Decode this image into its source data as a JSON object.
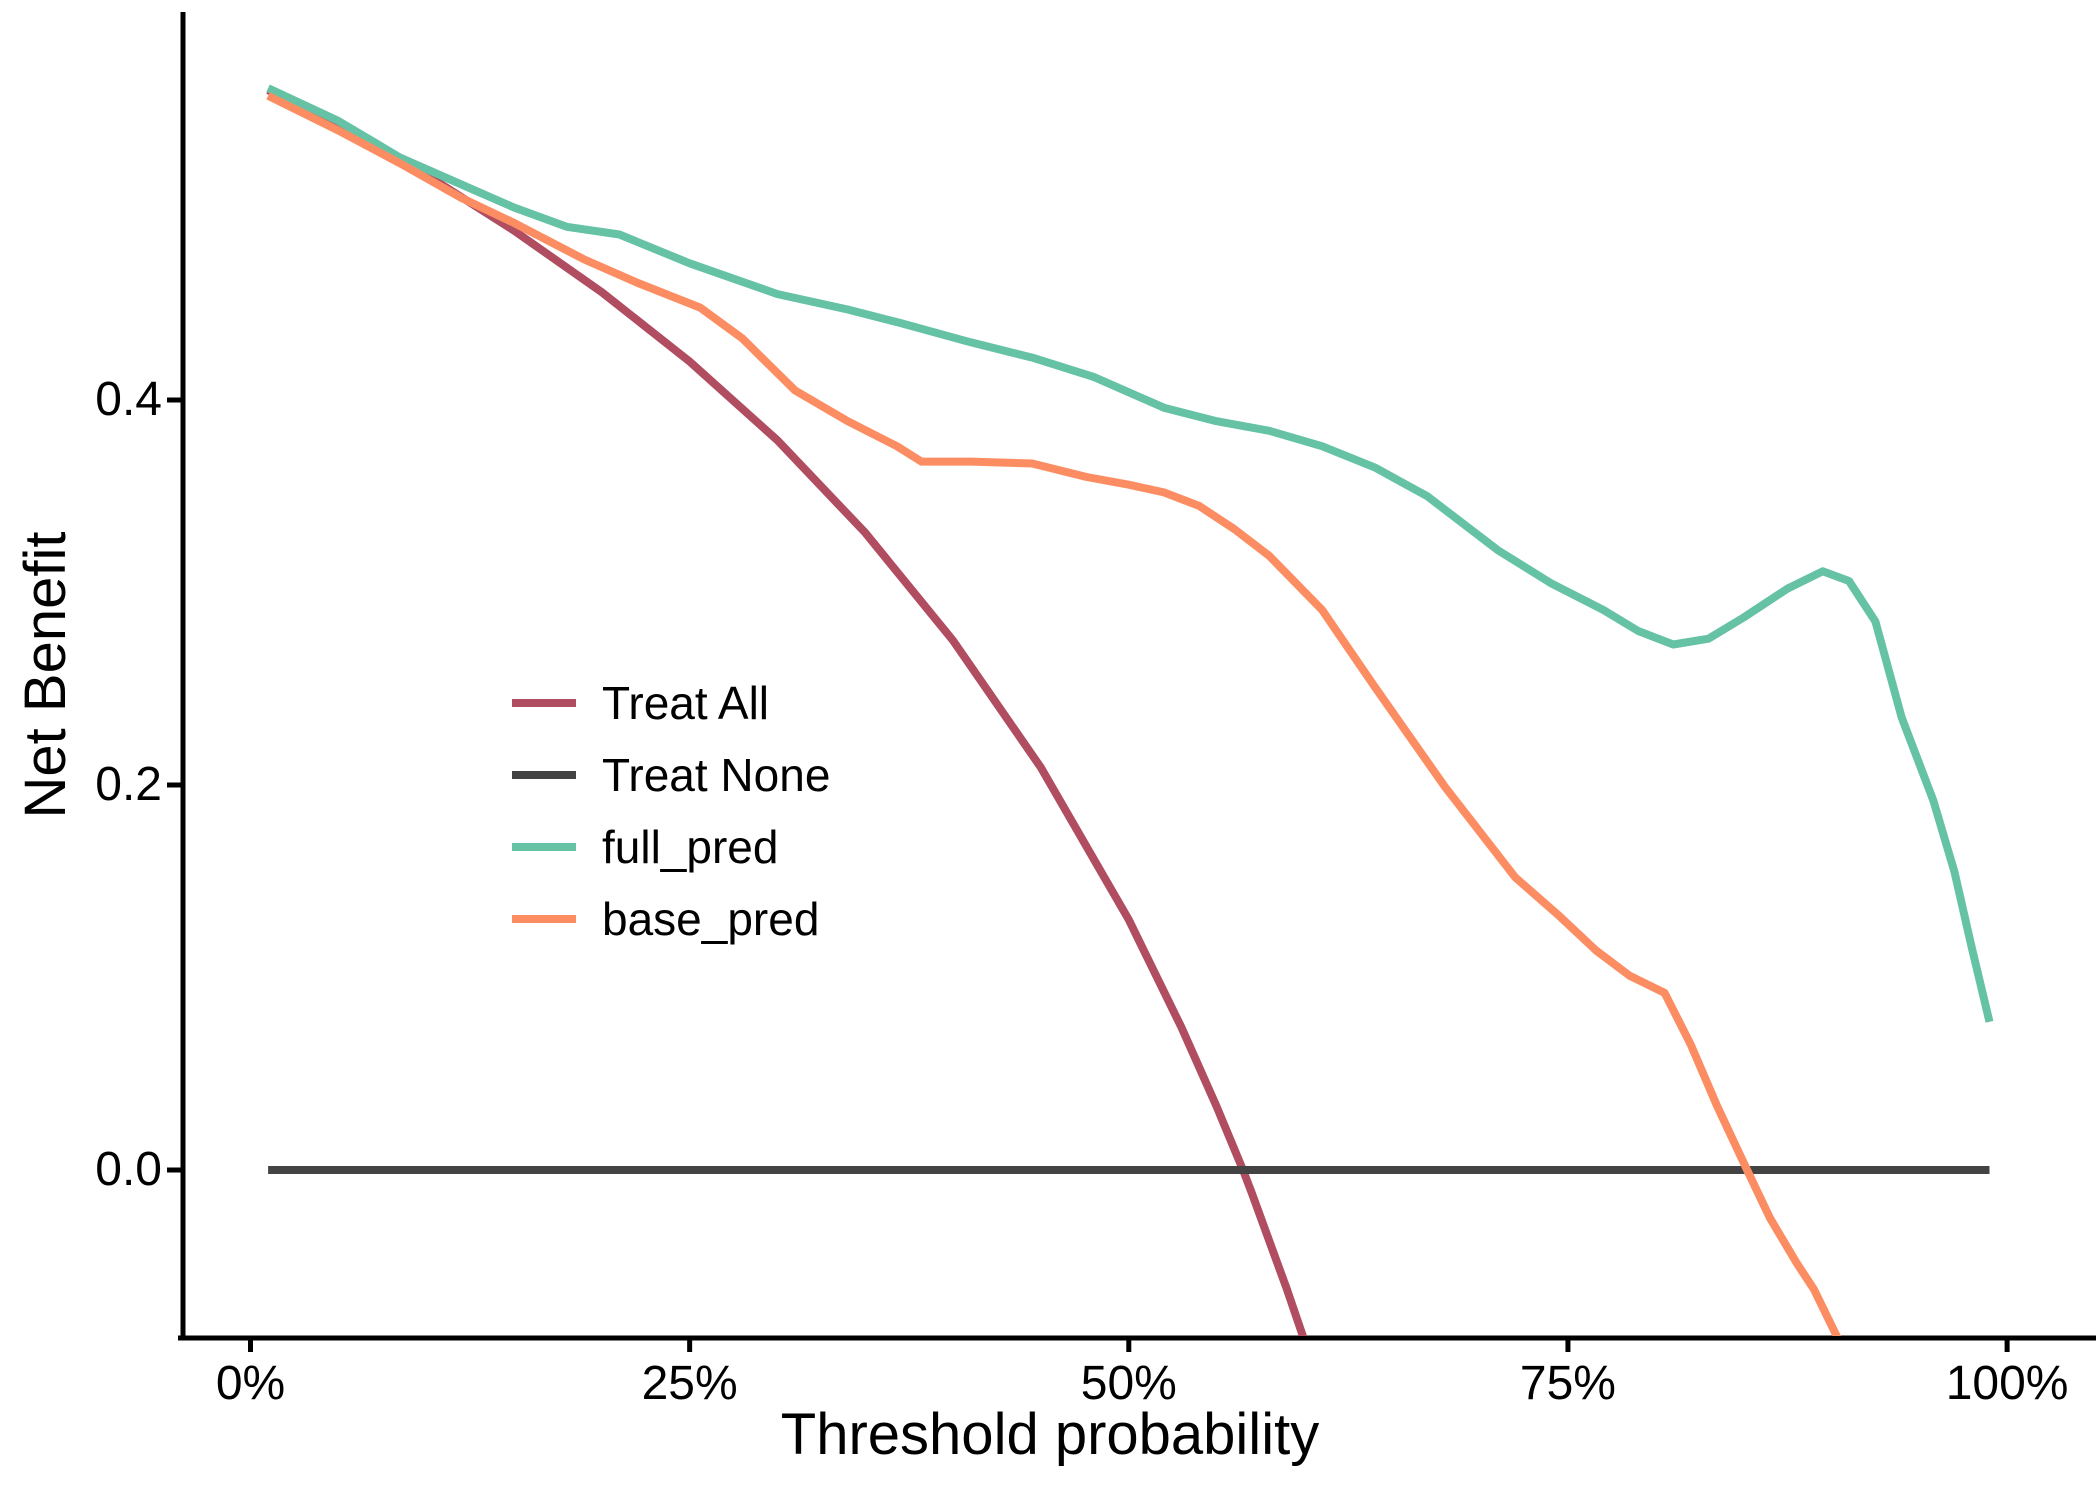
{
  "chart_data": {
    "type": "line",
    "title": "",
    "xlabel": "Threshold probability",
    "ylabel": "Net Benefit",
    "xlim": [
      0,
      100
    ],
    "ylim": [
      -0.09,
      0.6
    ],
    "grid": false,
    "legend_position": "inside-left-middle",
    "x_ticks": [
      {
        "value": 0,
        "label": "0%"
      },
      {
        "value": 25,
        "label": "25%"
      },
      {
        "value": 50,
        "label": "50%"
      },
      {
        "value": 75,
        "label": "75%"
      },
      {
        "value": 100,
        "label": "100%"
      }
    ],
    "y_ticks": [
      {
        "value": 0.0,
        "label": "0.0"
      },
      {
        "value": 0.2,
        "label": "0.2"
      },
      {
        "value": 0.4,
        "label": "0.4"
      }
    ],
    "axis_color": "#000000",
    "series": [
      {
        "name": "Treat All",
        "color": "#B04D61",
        "points": [
          [
            1,
            0.561
          ],
          [
            5,
            0.542
          ],
          [
            10,
            0.517
          ],
          [
            15,
            0.488
          ],
          [
            20,
            0.456
          ],
          [
            25,
            0.42
          ],
          [
            30,
            0.379
          ],
          [
            35,
            0.331
          ],
          [
            40,
            0.275
          ],
          [
            45,
            0.209
          ],
          [
            50,
            0.13
          ],
          [
            53,
            0.074
          ],
          [
            55,
            0.033
          ],
          [
            56.5,
            0.0
          ],
          [
            57,
            -0.012
          ],
          [
            59,
            -0.062
          ],
          [
            60.5,
            -0.102
          ],
          [
            61,
            -0.12
          ]
        ]
      },
      {
        "name": "Treat None",
        "color": "#434343",
        "points": [
          [
            1,
            0.0
          ],
          [
            99,
            0.0
          ]
        ]
      },
      {
        "name": "full_pred",
        "color": "#66C2A5",
        "points": [
          [
            1,
            0.562
          ],
          [
            5,
            0.545
          ],
          [
            8.5,
            0.526
          ],
          [
            12,
            0.512
          ],
          [
            15,
            0.5
          ],
          [
            18,
            0.49
          ],
          [
            21,
            0.486
          ],
          [
            25,
            0.471
          ],
          [
            30,
            0.455
          ],
          [
            34,
            0.447
          ],
          [
            37,
            0.44
          ],
          [
            41,
            0.43
          ],
          [
            44.5,
            0.422
          ],
          [
            48,
            0.412
          ],
          [
            52,
            0.396
          ],
          [
            55,
            0.389
          ],
          [
            58,
            0.384
          ],
          [
            61,
            0.376
          ],
          [
            64,
            0.365
          ],
          [
            67,
            0.35
          ],
          [
            71,
            0.322
          ],
          [
            74,
            0.305
          ],
          [
            77,
            0.291
          ],
          [
            79,
            0.28
          ],
          [
            81,
            0.273
          ],
          [
            83,
            0.276
          ],
          [
            85,
            0.287
          ],
          [
            87.5,
            0.302
          ],
          [
            89.5,
            0.311
          ],
          [
            91,
            0.306
          ],
          [
            92.5,
            0.285
          ],
          [
            94,
            0.235
          ],
          [
            95.8,
            0.192
          ],
          [
            97,
            0.155
          ],
          [
            98,
            0.115
          ],
          [
            99,
            0.077
          ]
        ]
      },
      {
        "name": "base_pred",
        "color": "#FC8D62",
        "points": [
          [
            1,
            0.558
          ],
          [
            5,
            0.54
          ],
          [
            8.5,
            0.523
          ],
          [
            12,
            0.505
          ],
          [
            15,
            0.492
          ],
          [
            19,
            0.473
          ],
          [
            22,
            0.461
          ],
          [
            25.6,
            0.448
          ],
          [
            28,
            0.432
          ],
          [
            31,
            0.405
          ],
          [
            34,
            0.389
          ],
          [
            36.8,
            0.376
          ],
          [
            38.2,
            0.368
          ],
          [
            41,
            0.368
          ],
          [
            44.5,
            0.367
          ],
          [
            47.6,
            0.36
          ],
          [
            50,
            0.356
          ],
          [
            52,
            0.352
          ],
          [
            54,
            0.345
          ],
          [
            56,
            0.333
          ],
          [
            58,
            0.319
          ],
          [
            61,
            0.291
          ],
          [
            64,
            0.251
          ],
          [
            68,
            0.199
          ],
          [
            72,
            0.152
          ],
          [
            74.5,
            0.132
          ],
          [
            76.6,
            0.114
          ],
          [
            78.5,
            0.101
          ],
          [
            80.5,
            0.092
          ],
          [
            82,
            0.065
          ],
          [
            83.5,
            0.033
          ],
          [
            85.2,
            0.0
          ],
          [
            86.5,
            -0.025
          ],
          [
            88,
            -0.048
          ],
          [
            89,
            -0.062
          ],
          [
            90.5,
            -0.09
          ],
          [
            91,
            -0.115
          ]
        ]
      }
    ]
  }
}
